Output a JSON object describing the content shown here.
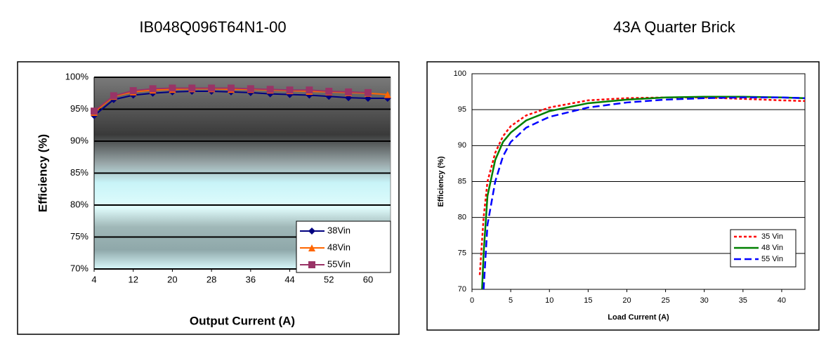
{
  "chart_data": [
    {
      "type": "line",
      "title": "IB048Q096T64N1-00",
      "x_label": "Output Current (A)",
      "y_label": "Efficiency (%)",
      "x": [
        4,
        8,
        12,
        16,
        20,
        24,
        28,
        32,
        36,
        40,
        44,
        48,
        52,
        56,
        60,
        64
      ],
      "xlim": [
        4,
        64.6
      ],
      "xticks": [
        4,
        12,
        20,
        28,
        36,
        44,
        52,
        60
      ],
      "ylim": [
        70,
        100
      ],
      "yticks": [
        {
          "value": 70,
          "label": "70%"
        },
        {
          "value": 75,
          "label": "75%"
        },
        {
          "value": 80,
          "label": "80%"
        },
        {
          "value": 85,
          "label": "85%"
        },
        {
          "value": 90,
          "label": "90%"
        },
        {
          "value": 95,
          "label": "95%"
        },
        {
          "value": 100,
          "label": "100%"
        }
      ],
      "grid": true,
      "legend": "lower right",
      "series": [
        {
          "name": "38Vin",
          "color": "#000080",
          "marker": "diamond",
          "dash": "solid",
          "values": [
            94,
            96.5,
            97.2,
            97.5,
            97.7,
            97.8,
            97.8,
            97.7,
            97.6,
            97.4,
            97.3,
            97.2,
            97.0,
            96.8,
            96.7,
            96.7
          ]
        },
        {
          "name": "48Vin",
          "color": "#ff6600",
          "marker": "triangle",
          "dash": "solid",
          "values": [
            94.5,
            97,
            97.7,
            98,
            98.1,
            98.2,
            98.2,
            98.1,
            98.1,
            98,
            97.9,
            97.8,
            97.7,
            97.6,
            97.5,
            97.3
          ]
        },
        {
          "name": "55Vin",
          "color": "#993366",
          "marker": "square",
          "dash": "solid",
          "values": [
            94.7,
            97.1,
            97.9,
            98.2,
            98.3,
            98.3,
            98.3,
            98.3,
            98.2,
            98.1,
            98,
            98,
            97.8,
            97.7,
            97.6,
            null
          ]
        }
      ]
    },
    {
      "type": "line",
      "title": "43A Quarter Brick",
      "x_label": "Load Current (A)",
      "y_label": "Efficiency (%)",
      "xlim": [
        0,
        43
      ],
      "xticks": [
        0,
        5,
        10,
        15,
        20,
        25,
        30,
        35,
        40
      ],
      "ylim": [
        70,
        100
      ],
      "yticks": [
        70,
        75,
        80,
        85,
        90,
        95,
        100
      ],
      "grid": true,
      "legend": "lower right",
      "series": [
        {
          "name": "35 Vin",
          "color": "#ff0000",
          "dash": "dotted",
          "x": [
            1,
            1.5,
            2,
            3,
            4,
            5,
            7,
            10,
            15,
            20,
            25,
            30,
            35,
            40,
            43
          ],
          "values": [
            72,
            80,
            85,
            89,
            91.3,
            92.7,
            94.2,
            95.3,
            96.3,
            96.6,
            96.7,
            96.7,
            96.5,
            96.3,
            96.2
          ]
        },
        {
          "name": "48 Vin",
          "color": "#008000",
          "dash": "solid",
          "x": [
            1.3,
            1.5,
            2,
            3,
            4,
            5,
            7,
            10,
            15,
            20,
            25,
            30,
            35,
            40,
            43
          ],
          "values": [
            70,
            75,
            83,
            88,
            90.5,
            91.8,
            93.5,
            94.8,
            95.9,
            96.4,
            96.7,
            96.8,
            96.8,
            96.7,
            96.6
          ]
        },
        {
          "name": "55 Vin",
          "color": "#0000ff",
          "dash": "dashed",
          "x": [
            1.5,
            2,
            3,
            4,
            5,
            7,
            10,
            15,
            20,
            25,
            30,
            35,
            40,
            43
          ],
          "values": [
            70,
            79,
            85,
            88.5,
            90.5,
            92.5,
            94,
            95.3,
            96,
            96.4,
            96.6,
            96.7,
            96.7,
            96.6
          ]
        }
      ]
    }
  ]
}
